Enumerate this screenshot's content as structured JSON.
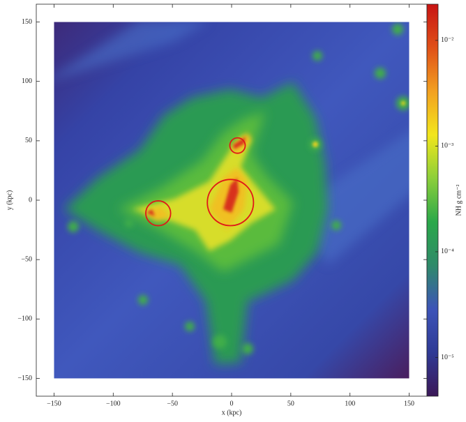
{
  "chart_data": {
    "type": "image",
    "xlabel": "x  (kpc)",
    "ylabel": "y  (kpc)",
    "xlim": [
      -165,
      165
    ],
    "ylim": [
      -165,
      165
    ],
    "xticks": [
      {
        "value": -150,
        "label": "−150"
      },
      {
        "value": -100,
        "label": "−100"
      },
      {
        "value": -50,
        "label": "−50"
      },
      0,
      50,
      100,
      150
    ],
    "yticks": [
      {
        "value": -150,
        "label": "−150"
      },
      {
        "value": -100,
        "label": "−100"
      },
      {
        "value": -50,
        "label": "−50"
      },
      0,
      50,
      100,
      150
    ],
    "extent": [
      -150,
      150,
      -150,
      150
    ],
    "colorbar": {
      "label": "NH  g cm⁻²",
      "log_scale": true,
      "lim": [
        4.3e-06,
        0.022
      ],
      "ticks": [
        {
          "value": 1e-05,
          "label": "10⁻⁵"
        },
        {
          "value": 0.0001,
          "label": "10⁻⁴"
        },
        {
          "value": 0.001,
          "label": "10⁻³"
        },
        {
          "value": 0.01,
          "label": "10⁻²"
        }
      ],
      "colors": [
        "#3b1858",
        "#2f3a95",
        "#3d54b8",
        "#2f8a6a",
        "#2aa84a",
        "#8ccf3a",
        "#f2e61c",
        "#f2a020",
        "#e05018",
        "#c81414"
      ]
    },
    "circles": [
      {
        "x": 5,
        "y": 46,
        "r": 6.5
      },
      {
        "x": -62,
        "y": -11,
        "r": 10.5
      },
      {
        "x": -1,
        "y": -2,
        "r": 19.5
      }
    ],
    "circle_color": "#e01818"
  }
}
